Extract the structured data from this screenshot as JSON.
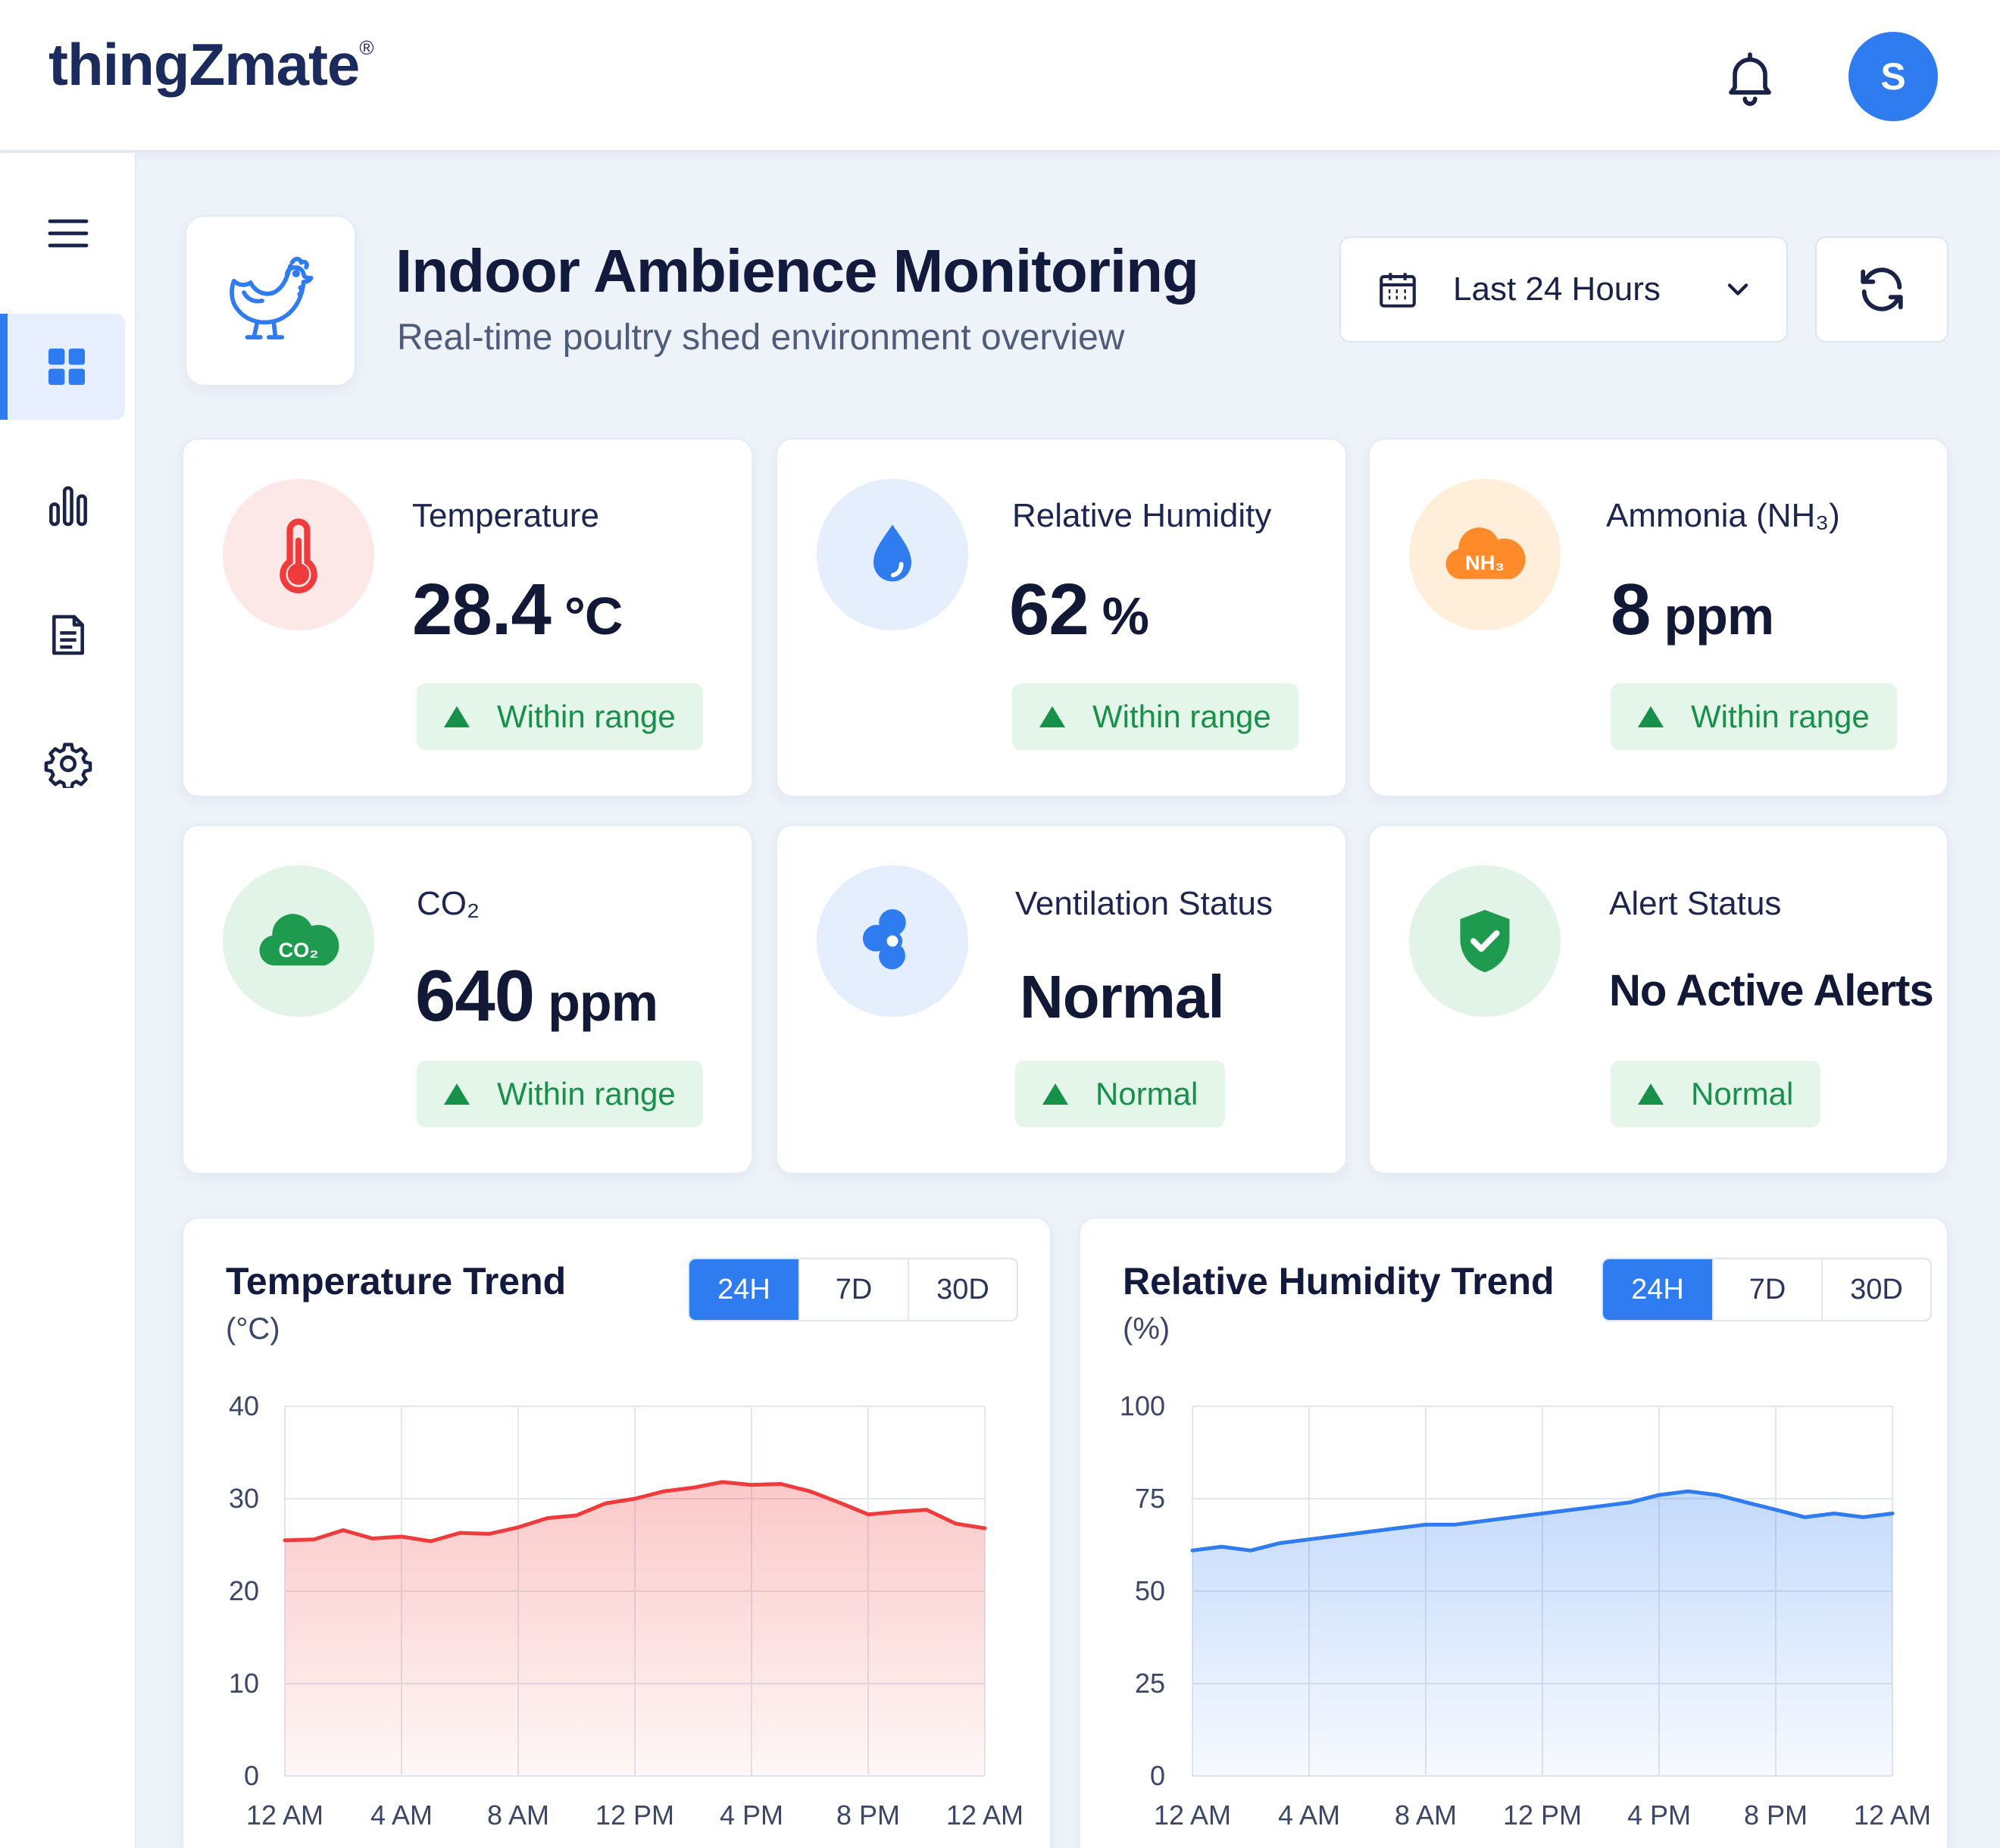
{
  "app": {
    "logo_text": "thingZmate",
    "logo_mark": "®",
    "avatar_initial": "S",
    "icons": {
      "bell": "bell-icon",
      "menu": "hamburger-icon",
      "dashboard": "grid-icon",
      "analytics": "bar-chart-icon",
      "reports": "document-icon",
      "settings": "gear-icon"
    }
  },
  "page": {
    "title": "Indoor Ambience Monitoring",
    "subtitle": "Real-time poultry shed environment overview",
    "range_label": "Last 24 Hours"
  },
  "colors": {
    "accent": "#2f7bf0",
    "ok_green": "#17904a",
    "temp_red": "#ef3b3b",
    "humidity_blue": "#2f7bf0",
    "ammonia_orange": "#ff8a2a"
  },
  "metrics": {
    "temperature": {
      "label": "Temperature",
      "value": "28.4",
      "unit": "°C",
      "status": "Within range"
    },
    "humidity": {
      "label": "Relative Humidity",
      "value": "62",
      "unit": "%",
      "status": "Within range"
    },
    "ammonia": {
      "label": "Ammonia (NH₃)",
      "value": "8",
      "unit": "ppm",
      "status": "Within range",
      "icon_text": "NH₃"
    },
    "co2": {
      "label": "CO₂",
      "value": "640",
      "unit": "ppm",
      "status": "Within range",
      "icon_text": "CO₂"
    },
    "ventilation": {
      "label": "Ventilation Status",
      "value": "Normal",
      "status": "Normal"
    },
    "alerts": {
      "label": "Alert Status",
      "value": "No Active Alerts",
      "status": "Normal"
    }
  },
  "charts": {
    "temperature": {
      "title": "Temperature Trend",
      "unit_label": "(°C)",
      "tabs": [
        "24H",
        "7D",
        "30D"
      ],
      "active_tab": "24H"
    },
    "humidity": {
      "title": "Relative Humidity Trend",
      "unit_label": "(%)",
      "tabs": [
        "24H",
        "7D",
        "30D"
      ],
      "active_tab": "24H"
    }
  },
  "chart_data": [
    {
      "type": "area",
      "title": "Temperature Trend",
      "ylabel": "(°C)",
      "ylim": [
        0,
        40
      ],
      "yticks": [
        0,
        10,
        20,
        30,
        40
      ],
      "xticks": [
        "12 AM",
        "4 AM",
        "8 AM",
        "12 PM",
        "4 PM",
        "8 PM",
        "12 AM"
      ],
      "x_hours": [
        0,
        1,
        2,
        3,
        4,
        5,
        6,
        7,
        8,
        9,
        10,
        11,
        12,
        13,
        14,
        15,
        16,
        17,
        18,
        19,
        20,
        21,
        22,
        23,
        24
      ],
      "values": [
        25.5,
        25.6,
        26.6,
        25.7,
        25.9,
        25.4,
        26.3,
        26.2,
        26.9,
        27.9,
        28.2,
        29.5,
        30.0,
        30.8,
        31.2,
        31.8,
        31.5,
        31.6,
        30.8,
        29.6,
        28.3,
        28.6,
        28.8,
        27.3,
        26.8
      ],
      "grid": true,
      "color": "#ef3b3b"
    },
    {
      "type": "area",
      "title": "Relative Humidity Trend",
      "ylabel": "(%)",
      "ylim": [
        0,
        100
      ],
      "yticks": [
        0,
        25,
        50,
        75,
        100
      ],
      "xticks": [
        "12 AM",
        "4 AM",
        "8 AM",
        "12 PM",
        "4 PM",
        "8 PM",
        "12 AM"
      ],
      "x_hours": [
        0,
        1,
        2,
        3,
        4,
        5,
        6,
        7,
        8,
        9,
        10,
        11,
        12,
        13,
        14,
        15,
        16,
        17,
        18,
        19,
        20,
        21,
        22,
        23,
        24
      ],
      "values": [
        61,
        62,
        61,
        63,
        64,
        65,
        66,
        67,
        68,
        68,
        69,
        70,
        71,
        72,
        73,
        74,
        76,
        77,
        76,
        74,
        72,
        70,
        71,
        70,
        71
      ],
      "grid": true,
      "color": "#2f7bf0"
    }
  ]
}
